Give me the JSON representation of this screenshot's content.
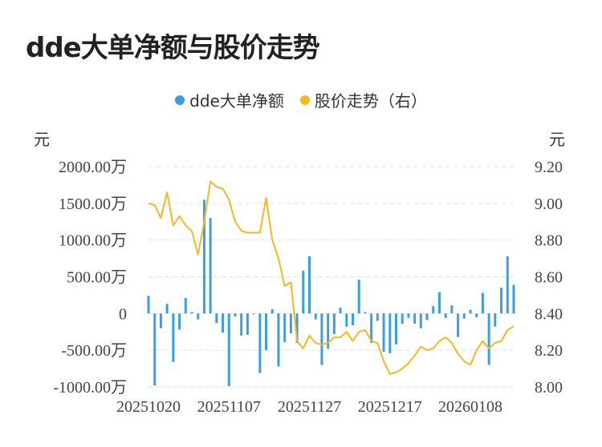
{
  "title": "dde大单净额与股价走势",
  "legend": [
    {
      "label": "dde大单净额",
      "color": "#3a9ee4"
    },
    {
      "label": "股价走势（右）",
      "color": "#f5b821"
    }
  ],
  "left_unit": "元",
  "right_unit": "元",
  "chart_data": {
    "type": "bar+line",
    "x_tick_labels": [
      "20251020",
      "20251107",
      "20251127",
      "20251217",
      "20260108"
    ],
    "x_tick_indices": [
      0,
      13,
      26,
      39,
      52
    ],
    "y_left": {
      "ticks": [
        2000,
        1500,
        1000,
        500,
        0,
        -500,
        -1000
      ],
      "tick_labels": [
        "2000.00万",
        "1500.00万",
        "1000.00万",
        "500.00万",
        "0",
        "-500.00万",
        "-1000.00万"
      ],
      "range": [
        -1000,
        2000
      ]
    },
    "y_right": {
      "ticks": [
        9.2,
        9.0,
        8.8,
        8.6,
        8.4,
        8.2,
        8.0
      ],
      "tick_labels": [
        "9.20",
        "9.00",
        "8.80",
        "8.60",
        "8.40",
        "8.20",
        "8.00"
      ],
      "range": [
        8.0,
        9.2
      ]
    },
    "series": [
      {
        "name": "dde大单净额",
        "type": "bar",
        "color": "#3a9ee4",
        "values": [
          240,
          -980,
          -200,
          130,
          -660,
          -220,
          210,
          20,
          -80,
          1550,
          1300,
          -130,
          -260,
          -990,
          -40,
          -300,
          -290,
          0,
          -810,
          -500,
          60,
          -720,
          -390,
          -270,
          -400,
          580,
          780,
          -80,
          -700,
          -480,
          -280,
          80,
          -180,
          -160,
          460,
          20,
          -400,
          -100,
          -520,
          -540,
          -420,
          -140,
          -60,
          -140,
          -200,
          -90,
          100,
          290,
          -60,
          110,
          -320,
          -70,
          50,
          -50,
          280,
          -700,
          -180,
          350,
          780,
          390
        ]
      },
      {
        "name": "股价走势（右）",
        "type": "line",
        "color": "#f5b821",
        "values": [
          9.0,
          8.99,
          8.92,
          9.06,
          8.88,
          8.93,
          8.88,
          8.85,
          8.72,
          8.9,
          9.12,
          9.09,
          9.08,
          9.02,
          8.9,
          8.85,
          8.84,
          8.84,
          8.84,
          9.03,
          8.8,
          8.7,
          8.55,
          8.57,
          8.25,
          8.21,
          8.28,
          8.24,
          8.23,
          8.24,
          8.27,
          8.27,
          8.3,
          8.25,
          8.3,
          8.31,
          8.25,
          8.24,
          8.14,
          8.07,
          8.08,
          8.1,
          8.13,
          8.17,
          8.22,
          8.2,
          8.21,
          8.25,
          8.27,
          8.24,
          8.18,
          8.14,
          8.12,
          8.2,
          8.25,
          8.21,
          8.24,
          8.25,
          8.31,
          8.33
        ]
      }
    ],
    "grid": "horizontal-dashed",
    "legend_position": "top-center"
  }
}
